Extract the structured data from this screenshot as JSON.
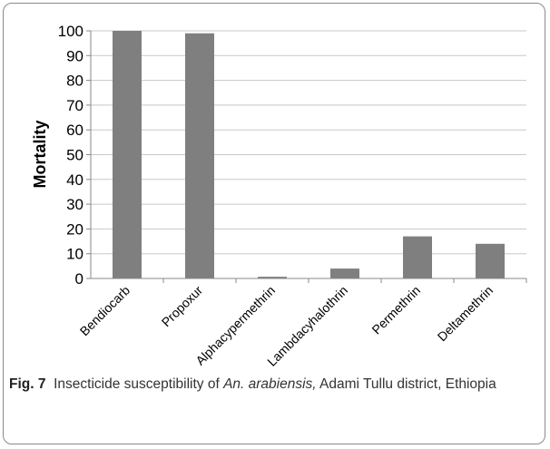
{
  "chart_data": {
    "type": "bar",
    "categories": [
      "Bendiocarb",
      "Propoxur",
      "Alphacypermethrin",
      "Lambdacyhalothrin",
      "Permethrin",
      "Deltamethrin"
    ],
    "values": [
      100,
      99,
      0.7,
      4,
      17,
      14
    ],
    "ylabel": "Mortality",
    "xlabel": "",
    "ylim": [
      0,
      100
    ],
    "yticks": [
      0,
      10,
      20,
      30,
      40,
      50,
      60,
      70,
      80,
      90,
      100
    ],
    "grid": true,
    "bar_color": "#7f7f7f",
    "grid_color": "#c8c8c8"
  },
  "caption": {
    "label": "Fig. 7",
    "text_before": "Insecticide susceptibility of ",
    "species": "An. arabiensis,",
    "text_after": " Adami Tullu district, Ethiopia"
  }
}
